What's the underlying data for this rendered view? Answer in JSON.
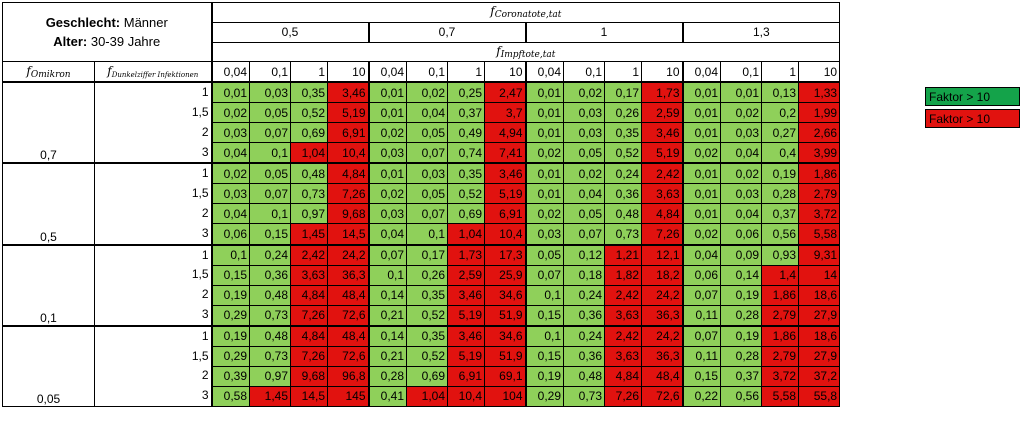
{
  "header": {
    "gender_label": "Geschlecht:",
    "gender_value": "Männer",
    "age_label": "Alter:",
    "age_value": "30-39 Jahre",
    "corona_symbol": "f",
    "corona_sub": "Coronatote,tat",
    "impf_symbol": "f",
    "impf_sub": "Impftote,tat",
    "omikron_symbol": "f",
    "omikron_sub": "Omikron",
    "dunkel_symbol": "f",
    "dunkel_sub": "Dunkelziffer Infektionen",
    "corona_values": [
      "0,5",
      "0,7",
      "1",
      "1,3"
    ],
    "impf_values": [
      "0,04",
      "0,1",
      "1",
      "10"
    ]
  },
  "rows": [
    {
      "omikron": "",
      "dunkel": "1",
      "cells": [
        {
          "v": "0,01",
          "c": "light"
        },
        {
          "v": "0,03",
          "c": "light"
        },
        {
          "v": "0,35",
          "c": "light"
        },
        {
          "v": "3,46",
          "c": "dark"
        },
        {
          "v": "0,01",
          "c": "light"
        },
        {
          "v": "0,02",
          "c": "light"
        },
        {
          "v": "0,25",
          "c": "light"
        },
        {
          "v": "2,47",
          "c": "dark"
        },
        {
          "v": "0,01",
          "c": "light"
        },
        {
          "v": "0,02",
          "c": "light"
        },
        {
          "v": "0,17",
          "c": "light"
        },
        {
          "v": "1,73",
          "c": "dark"
        },
        {
          "v": "0,01",
          "c": "light"
        },
        {
          "v": "0,01",
          "c": "light"
        },
        {
          "v": "0,13",
          "c": "light"
        },
        {
          "v": "1,33",
          "c": "dark"
        }
      ]
    },
    {
      "omikron": "",
      "dunkel": "1,5",
      "cells": [
        {
          "v": "0,02",
          "c": "light"
        },
        {
          "v": "0,05",
          "c": "light"
        },
        {
          "v": "0,52",
          "c": "light"
        },
        {
          "v": "5,19",
          "c": "dark"
        },
        {
          "v": "0,01",
          "c": "light"
        },
        {
          "v": "0,04",
          "c": "light"
        },
        {
          "v": "0,37",
          "c": "light"
        },
        {
          "v": "3,7",
          "c": "dark"
        },
        {
          "v": "0,01",
          "c": "light"
        },
        {
          "v": "0,03",
          "c": "light"
        },
        {
          "v": "0,26",
          "c": "light"
        },
        {
          "v": "2,59",
          "c": "dark"
        },
        {
          "v": "0,01",
          "c": "light"
        },
        {
          "v": "0,02",
          "c": "light"
        },
        {
          "v": "0,2",
          "c": "light"
        },
        {
          "v": "1,99",
          "c": "dark"
        }
      ]
    },
    {
      "omikron": "",
      "dunkel": "2",
      "cells": [
        {
          "v": "0,03",
          "c": "light"
        },
        {
          "v": "0,07",
          "c": "light"
        },
        {
          "v": "0,69",
          "c": "light"
        },
        {
          "v": "6,91",
          "c": "dark"
        },
        {
          "v": "0,02",
          "c": "light"
        },
        {
          "v": "0,05",
          "c": "light"
        },
        {
          "v": "0,49",
          "c": "light"
        },
        {
          "v": "4,94",
          "c": "dark"
        },
        {
          "v": "0,01",
          "c": "light"
        },
        {
          "v": "0,03",
          "c": "light"
        },
        {
          "v": "0,35",
          "c": "light"
        },
        {
          "v": "3,46",
          "c": "dark"
        },
        {
          "v": "0,01",
          "c": "light"
        },
        {
          "v": "0,03",
          "c": "light"
        },
        {
          "v": "0,27",
          "c": "light"
        },
        {
          "v": "2,66",
          "c": "dark"
        }
      ]
    },
    {
      "omikron": "0,7",
      "dunkel": "3",
      "cells": [
        {
          "v": "0,04",
          "c": "light"
        },
        {
          "v": "0,1",
          "c": "light"
        },
        {
          "v": "1,04",
          "c": "dark"
        },
        {
          "v": "10,4",
          "c": "dark"
        },
        {
          "v": "0,03",
          "c": "light"
        },
        {
          "v": "0,07",
          "c": "light"
        },
        {
          "v": "0,74",
          "c": "light"
        },
        {
          "v": "7,41",
          "c": "dark"
        },
        {
          "v": "0,02",
          "c": "light"
        },
        {
          "v": "0,05",
          "c": "light"
        },
        {
          "v": "0,52",
          "c": "light"
        },
        {
          "v": "5,19",
          "c": "dark"
        },
        {
          "v": "0,02",
          "c": "light"
        },
        {
          "v": "0,04",
          "c": "light"
        },
        {
          "v": "0,4",
          "c": "light"
        },
        {
          "v": "3,99",
          "c": "dark"
        }
      ]
    },
    {
      "omikron": "",
      "dunkel": "1",
      "cells": [
        {
          "v": "0,02",
          "c": "light"
        },
        {
          "v": "0,05",
          "c": "light"
        },
        {
          "v": "0,48",
          "c": "light"
        },
        {
          "v": "4,84",
          "c": "dark"
        },
        {
          "v": "0,01",
          "c": "light"
        },
        {
          "v": "0,03",
          "c": "light"
        },
        {
          "v": "0,35",
          "c": "light"
        },
        {
          "v": "3,46",
          "c": "dark"
        },
        {
          "v": "0,01",
          "c": "light"
        },
        {
          "v": "0,02",
          "c": "light"
        },
        {
          "v": "0,24",
          "c": "light"
        },
        {
          "v": "2,42",
          "c": "dark"
        },
        {
          "v": "0,01",
          "c": "light"
        },
        {
          "v": "0,02",
          "c": "light"
        },
        {
          "v": "0,19",
          "c": "light"
        },
        {
          "v": "1,86",
          "c": "dark"
        }
      ]
    },
    {
      "omikron": "",
      "dunkel": "1,5",
      "cells": [
        {
          "v": "0,03",
          "c": "light"
        },
        {
          "v": "0,07",
          "c": "light"
        },
        {
          "v": "0,73",
          "c": "light"
        },
        {
          "v": "7,26",
          "c": "dark"
        },
        {
          "v": "0,02",
          "c": "light"
        },
        {
          "v": "0,05",
          "c": "light"
        },
        {
          "v": "0,52",
          "c": "light"
        },
        {
          "v": "5,19",
          "c": "dark"
        },
        {
          "v": "0,01",
          "c": "light"
        },
        {
          "v": "0,04",
          "c": "light"
        },
        {
          "v": "0,36",
          "c": "light"
        },
        {
          "v": "3,63",
          "c": "dark"
        },
        {
          "v": "0,01",
          "c": "light"
        },
        {
          "v": "0,03",
          "c": "light"
        },
        {
          "v": "0,28",
          "c": "light"
        },
        {
          "v": "2,79",
          "c": "dark"
        }
      ]
    },
    {
      "omikron": "",
      "dunkel": "2",
      "cells": [
        {
          "v": "0,04",
          "c": "light"
        },
        {
          "v": "0,1",
          "c": "light"
        },
        {
          "v": "0,97",
          "c": "light"
        },
        {
          "v": "9,68",
          "c": "dark"
        },
        {
          "v": "0,03",
          "c": "light"
        },
        {
          "v": "0,07",
          "c": "light"
        },
        {
          "v": "0,69",
          "c": "light"
        },
        {
          "v": "6,91",
          "c": "dark"
        },
        {
          "v": "0,02",
          "c": "light"
        },
        {
          "v": "0,05",
          "c": "light"
        },
        {
          "v": "0,48",
          "c": "light"
        },
        {
          "v": "4,84",
          "c": "dark"
        },
        {
          "v": "0,01",
          "c": "light"
        },
        {
          "v": "0,04",
          "c": "light"
        },
        {
          "v": "0,37",
          "c": "light"
        },
        {
          "v": "3,72",
          "c": "dark"
        }
      ]
    },
    {
      "omikron": "0,5",
      "dunkel": "3",
      "cells": [
        {
          "v": "0,06",
          "c": "light"
        },
        {
          "v": "0,15",
          "c": "light"
        },
        {
          "v": "1,45",
          "c": "dark"
        },
        {
          "v": "14,5",
          "c": "dark"
        },
        {
          "v": "0,04",
          "c": "light"
        },
        {
          "v": "0,1",
          "c": "light"
        },
        {
          "v": "1,04",
          "c": "dark"
        },
        {
          "v": "10,4",
          "c": "dark"
        },
        {
          "v": "0,03",
          "c": "light"
        },
        {
          "v": "0,07",
          "c": "light"
        },
        {
          "v": "0,73",
          "c": "light"
        },
        {
          "v": "7,26",
          "c": "dark"
        },
        {
          "v": "0,02",
          "c": "light"
        },
        {
          "v": "0,06",
          "c": "light"
        },
        {
          "v": "0,56",
          "c": "light"
        },
        {
          "v": "5,58",
          "c": "dark"
        }
      ]
    },
    {
      "omikron": "",
      "dunkel": "1",
      "cells": [
        {
          "v": "0,1",
          "c": "light"
        },
        {
          "v": "0,24",
          "c": "light"
        },
        {
          "v": "2,42",
          "c": "dark"
        },
        {
          "v": "24,2",
          "c": "dark"
        },
        {
          "v": "0,07",
          "c": "light"
        },
        {
          "v": "0,17",
          "c": "light"
        },
        {
          "v": "1,73",
          "c": "dark"
        },
        {
          "v": "17,3",
          "c": "dark"
        },
        {
          "v": "0,05",
          "c": "light"
        },
        {
          "v": "0,12",
          "c": "light"
        },
        {
          "v": "1,21",
          "c": "dark"
        },
        {
          "v": "12,1",
          "c": "dark"
        },
        {
          "v": "0,04",
          "c": "light"
        },
        {
          "v": "0,09",
          "c": "light"
        },
        {
          "v": "0,93",
          "c": "light"
        },
        {
          "v": "9,31",
          "c": "dark"
        }
      ]
    },
    {
      "omikron": "",
      "dunkel": "1,5",
      "cells": [
        {
          "v": "0,15",
          "c": "light"
        },
        {
          "v": "0,36",
          "c": "light"
        },
        {
          "v": "3,63",
          "c": "dark"
        },
        {
          "v": "36,3",
          "c": "dark"
        },
        {
          "v": "0,1",
          "c": "light"
        },
        {
          "v": "0,26",
          "c": "light"
        },
        {
          "v": "2,59",
          "c": "dark"
        },
        {
          "v": "25,9",
          "c": "dark"
        },
        {
          "v": "0,07",
          "c": "light"
        },
        {
          "v": "0,18",
          "c": "light"
        },
        {
          "v": "1,82",
          "c": "dark"
        },
        {
          "v": "18,2",
          "c": "dark"
        },
        {
          "v": "0,06",
          "c": "light"
        },
        {
          "v": "0,14",
          "c": "light"
        },
        {
          "v": "1,4",
          "c": "dark"
        },
        {
          "v": "14",
          "c": "dark"
        }
      ]
    },
    {
      "omikron": "",
      "dunkel": "2",
      "cells": [
        {
          "v": "0,19",
          "c": "light"
        },
        {
          "v": "0,48",
          "c": "light"
        },
        {
          "v": "4,84",
          "c": "dark"
        },
        {
          "v": "48,4",
          "c": "dark"
        },
        {
          "v": "0,14",
          "c": "light"
        },
        {
          "v": "0,35",
          "c": "light"
        },
        {
          "v": "3,46",
          "c": "dark"
        },
        {
          "v": "34,6",
          "c": "dark"
        },
        {
          "v": "0,1",
          "c": "light"
        },
        {
          "v": "0,24",
          "c": "light"
        },
        {
          "v": "2,42",
          "c": "dark"
        },
        {
          "v": "24,2",
          "c": "dark"
        },
        {
          "v": "0,07",
          "c": "light"
        },
        {
          "v": "0,19",
          "c": "light"
        },
        {
          "v": "1,86",
          "c": "dark"
        },
        {
          "v": "18,6",
          "c": "dark"
        }
      ]
    },
    {
      "omikron": "0,1",
      "dunkel": "3",
      "cells": [
        {
          "v": "0,29",
          "c": "light"
        },
        {
          "v": "0,73",
          "c": "light"
        },
        {
          "v": "7,26",
          "c": "dark"
        },
        {
          "v": "72,6",
          "c": "dark"
        },
        {
          "v": "0,21",
          "c": "light"
        },
        {
          "v": "0,52",
          "c": "light"
        },
        {
          "v": "5,19",
          "c": "dark"
        },
        {
          "v": "51,9",
          "c": "dark"
        },
        {
          "v": "0,15",
          "c": "light"
        },
        {
          "v": "0,36",
          "c": "light"
        },
        {
          "v": "3,63",
          "c": "dark"
        },
        {
          "v": "36,3",
          "c": "dark"
        },
        {
          "v": "0,11",
          "c": "light"
        },
        {
          "v": "0,28",
          "c": "light"
        },
        {
          "v": "2,79",
          "c": "dark"
        },
        {
          "v": "27,9",
          "c": "dark"
        }
      ]
    },
    {
      "omikron": "",
      "dunkel": "1",
      "cells": [
        {
          "v": "0,19",
          "c": "light"
        },
        {
          "v": "0,48",
          "c": "light"
        },
        {
          "v": "4,84",
          "c": "dark"
        },
        {
          "v": "48,4",
          "c": "dark"
        },
        {
          "v": "0,14",
          "c": "light"
        },
        {
          "v": "0,35",
          "c": "light"
        },
        {
          "v": "3,46",
          "c": "dark"
        },
        {
          "v": "34,6",
          "c": "dark"
        },
        {
          "v": "0,1",
          "c": "light"
        },
        {
          "v": "0,24",
          "c": "light"
        },
        {
          "v": "2,42",
          "c": "dark"
        },
        {
          "v": "24,2",
          "c": "dark"
        },
        {
          "v": "0,07",
          "c": "light"
        },
        {
          "v": "0,19",
          "c": "light"
        },
        {
          "v": "1,86",
          "c": "dark"
        },
        {
          "v": "18,6",
          "c": "dark"
        }
      ]
    },
    {
      "omikron": "",
      "dunkel": "1,5",
      "cells": [
        {
          "v": "0,29",
          "c": "light"
        },
        {
          "v": "0,73",
          "c": "light"
        },
        {
          "v": "7,26",
          "c": "dark"
        },
        {
          "v": "72,6",
          "c": "dark"
        },
        {
          "v": "0,21",
          "c": "light"
        },
        {
          "v": "0,52",
          "c": "light"
        },
        {
          "v": "5,19",
          "c": "dark"
        },
        {
          "v": "51,9",
          "c": "dark"
        },
        {
          "v": "0,15",
          "c": "light"
        },
        {
          "v": "0,36",
          "c": "light"
        },
        {
          "v": "3,63",
          "c": "dark"
        },
        {
          "v": "36,3",
          "c": "dark"
        },
        {
          "v": "0,11",
          "c": "light"
        },
        {
          "v": "0,28",
          "c": "light"
        },
        {
          "v": "2,79",
          "c": "dark"
        },
        {
          "v": "27,9",
          "c": "dark"
        }
      ]
    },
    {
      "omikron": "",
      "dunkel": "2",
      "cells": [
        {
          "v": "0,39",
          "c": "light"
        },
        {
          "v": "0,97",
          "c": "light"
        },
        {
          "v": "9,68",
          "c": "dark"
        },
        {
          "v": "96,8",
          "c": "dark"
        },
        {
          "v": "0,28",
          "c": "light"
        },
        {
          "v": "0,69",
          "c": "light"
        },
        {
          "v": "6,91",
          "c": "dark"
        },
        {
          "v": "69,1",
          "c": "dark"
        },
        {
          "v": "0,19",
          "c": "light"
        },
        {
          "v": "0,48",
          "c": "light"
        },
        {
          "v": "4,84",
          "c": "dark"
        },
        {
          "v": "48,4",
          "c": "dark"
        },
        {
          "v": "0,15",
          "c": "light"
        },
        {
          "v": "0,37",
          "c": "light"
        },
        {
          "v": "3,72",
          "c": "dark"
        },
        {
          "v": "37,2",
          "c": "dark"
        }
      ]
    },
    {
      "omikron": "0,05",
      "dunkel": "3",
      "cells": [
        {
          "v": "0,58",
          "c": "light"
        },
        {
          "v": "1,45",
          "c": "dark"
        },
        {
          "v": "14,5",
          "c": "dark"
        },
        {
          "v": "145",
          "c": "dark"
        },
        {
          "v": "0,41",
          "c": "light"
        },
        {
          "v": "1,04",
          "c": "dark"
        },
        {
          "v": "10,4",
          "c": "dark"
        },
        {
          "v": "104",
          "c": "dark"
        },
        {
          "v": "0,29",
          "c": "light"
        },
        {
          "v": "0,73",
          "c": "light"
        },
        {
          "v": "7,26",
          "c": "dark"
        },
        {
          "v": "72,6",
          "c": "dark"
        },
        {
          "v": "0,22",
          "c": "light"
        },
        {
          "v": "0,56",
          "c": "light"
        },
        {
          "v": "5,58",
          "c": "dark"
        },
        {
          "v": "55,8",
          "c": "dark"
        }
      ]
    }
  ],
  "legend": [
    {
      "label": "Faktor > 10",
      "color": "#14a34a"
    },
    {
      "label": "Faktor > 10",
      "color": "#e1120f"
    }
  ],
  "colors": {
    "light": "#8fd05a",
    "dark": "#e1120f",
    "green": "#14a34a"
  }
}
